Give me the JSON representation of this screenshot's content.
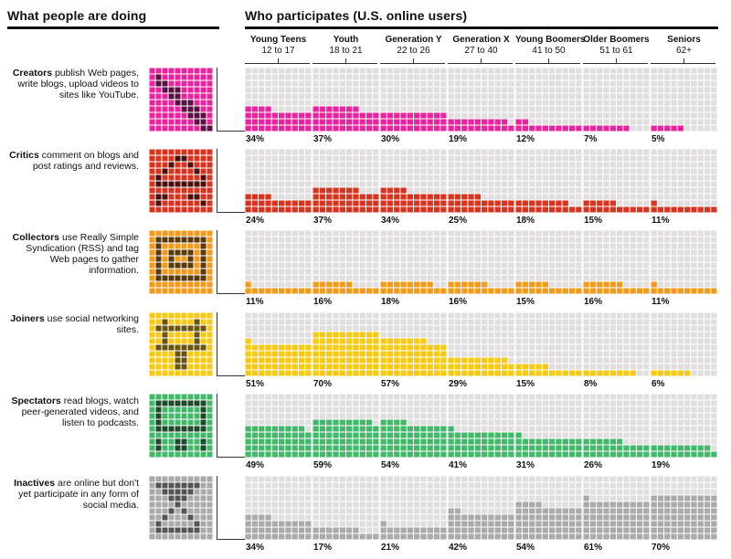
{
  "left_header": "What people are doing",
  "right_header": "Who participates (U.S. online users)",
  "chart_data": {
    "type": "bar",
    "title": "Who participates (U.S. online users)",
    "categories": [
      {
        "name": "Young Teens",
        "ages": "12 to 17"
      },
      {
        "name": "Youth",
        "ages": "18 to 21"
      },
      {
        "name": "Generation Y",
        "ages": "22 to 26"
      },
      {
        "name": "Generation X",
        "ages": "27 to 40"
      },
      {
        "name": "Young Boomers",
        "ages": "41 to 50"
      },
      {
        "name": "Older Boomers",
        "ages": "51 to 61"
      },
      {
        "name": "Seniors",
        "ages": "62+"
      }
    ],
    "ylim": [
      0,
      100
    ],
    "series": [
      {
        "name": "Creators",
        "text": "publish Web pages, write blogs, upload videos to sites like YouTube.",
        "color": "#e8239c",
        "light": "#f08cc7",
        "dark": "#5a1040",
        "icon": "creator-icon",
        "values": [
          34,
          37,
          30,
          19,
          12,
          7,
          5
        ],
        "labels": [
          "34%",
          "37%",
          "30%",
          "19%",
          "12%",
          "7%",
          "5%"
        ]
      },
      {
        "name": "Critics",
        "text": "comment on blogs and post ratings and reviews.",
        "color": "#d8331e",
        "light": "#e97a6b",
        "dark": "#4a0f0a",
        "icon": "critic-icon",
        "values": [
          24,
          37,
          34,
          25,
          18,
          15,
          11
        ],
        "labels": [
          "24%",
          "37%",
          "34%",
          "25%",
          "18%",
          "15%",
          "11%"
        ]
      },
      {
        "name": "Collectors",
        "text": "use Really Simple Syndication (RSS) and tag Web pages to gather information.",
        "color": "#f39a1a",
        "light": "#f7c06a",
        "dark": "#5a3a0a",
        "icon": "collector-icon",
        "values": [
          11,
          16,
          18,
          16,
          15,
          16,
          11
        ],
        "labels": [
          "11%",
          "16%",
          "18%",
          "16%",
          "15%",
          "16%",
          "11%"
        ]
      },
      {
        "name": "Joiners",
        "text": "use social networking sites.",
        "color": "#f7c915",
        "light": "#fadf6a",
        "dark": "#6a5410",
        "icon": "joiner-icon",
        "values": [
          51,
          70,
          57,
          29,
          15,
          8,
          6
        ],
        "labels": [
          "51%",
          "70%",
          "57%",
          "29%",
          "15%",
          "8%",
          "6%"
        ]
      },
      {
        "name": "Spectators",
        "text": "read blogs, watch peer-generated videos, and listen to podcasts.",
        "color": "#44b86a",
        "light": "#8fd3a4",
        "dark": "#1c4a2a",
        "icon": "spectator-icon",
        "values": [
          49,
          59,
          54,
          41,
          31,
          26,
          19
        ],
        "labels": [
          "49%",
          "59%",
          "54%",
          "41%",
          "31%",
          "26%",
          "19%"
        ]
      },
      {
        "name": "Inactives",
        "text": "are online but don't yet participate in any form of social media.",
        "color": "#aaaaaa",
        "light": "#c8c8c8",
        "dark": "#555555",
        "icon": "inactive-icon",
        "values": [
          34,
          17,
          21,
          42,
          54,
          61,
          70
        ],
        "labels": [
          "34%",
          "17%",
          "21%",
          "42%",
          "54%",
          "61%",
          "70%"
        ]
      }
    ]
  }
}
